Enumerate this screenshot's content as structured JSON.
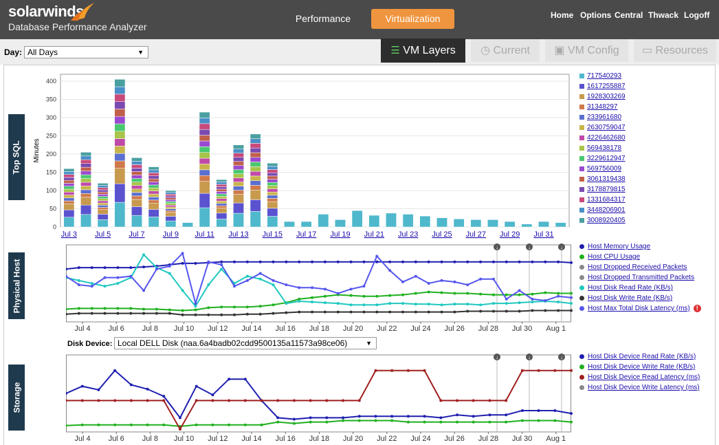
{
  "header": {
    "brand": "solarwinds",
    "product": "Database Performance Analyzer",
    "nav": [
      "Performance",
      "Virtualization"
    ],
    "links": [
      "Home",
      "Options",
      "Central",
      "Thwack",
      "Logoff"
    ]
  },
  "day": {
    "label": "Day:",
    "value": "All Days"
  },
  "tabs": [
    "VM Layers",
    "Current",
    "VM Config",
    "Resources"
  ],
  "sections": {
    "top_sql": "Top SQL",
    "physical_host": "Physical Host",
    "storage": "Storage"
  },
  "disk_device": {
    "label": "Disk Device:",
    "value": "Local DELL Disk (naa.6a4badb02cdd9500135a11573a98ce06)"
  },
  "chart_data": [
    {
      "type": "bar",
      "ylabel": "Minutes",
      "ylim": [
        0,
        400
      ],
      "yticks": [
        0,
        50,
        100,
        150,
        200,
        250,
        300,
        350,
        400
      ],
      "x_tick_labels": [
        "Jul 3",
        "Jul 5",
        "Jul 7",
        "Jul 9",
        "Jul 11",
        "Jul 13",
        "Jul 15",
        "Jul 17",
        "Jul 19",
        "Jul 21",
        "Jul 23",
        "Jul 25",
        "Jul 27",
        "Jul 29",
        "Jul 31"
      ],
      "totals": [
        160,
        205,
        120,
        405,
        190,
        165,
        100,
        12,
        315,
        130,
        225,
        255,
        175,
        15,
        15,
        35,
        20,
        45,
        32,
        38,
        35,
        30,
        25,
        22,
        20,
        20,
        15,
        8,
        15,
        12
      ],
      "legend": [
        "717540293",
        "1617255887",
        "1928303269",
        "31348297",
        "233961680",
        "2630759047",
        "4226462680",
        "569438178",
        "3229612947",
        "569756009",
        "3061319438",
        "3178879815",
        "1331684317",
        "3448206901",
        "3008920405"
      ],
      "colors": [
        "#4fb8cc",
        "#5a52cf",
        "#c89a4e",
        "#cf7a4a",
        "#5a6fd0",
        "#c8b44a",
        "#c04aa8",
        "#a8c44a",
        "#4ac870",
        "#9a4ad0",
        "#c0604a",
        "#7a4ab0",
        "#c84a7a",
        "#4a90c8",
        "#4aa0a0"
      ]
    },
    {
      "type": "line",
      "x_tick_labels": [
        "Jul 4",
        "Jul 6",
        "Jul 8",
        "Jul 10",
        "Jul 12",
        "Jul 14",
        "Jul 16",
        "Jul 18",
        "Jul 20",
        "Jul 22",
        "Jul 24",
        "Jul 26",
        "Jul 28",
        "Jul 30",
        "Aug 1"
      ],
      "series": [
        {
          "name": "Host Memory Usage",
          "color": "#1f1fb0",
          "values": [
            70,
            72,
            72,
            72,
            72,
            72,
            73,
            74,
            76,
            78,
            78,
            79,
            80,
            80,
            80,
            80,
            80,
            80,
            80,
            80,
            80,
            80,
            80,
            80,
            80,
            80,
            80,
            80,
            80,
            80,
            80,
            80,
            80,
            80,
            80,
            80,
            80,
            80,
            80,
            79
          ]
        },
        {
          "name": "Host CPU Usage",
          "color": "#1fb01f",
          "values": [
            14,
            15,
            15,
            15,
            15,
            15,
            14,
            14,
            13,
            12,
            13,
            16,
            17,
            17,
            17,
            18,
            20,
            23,
            28,
            30,
            32,
            34,
            33,
            32,
            32,
            33,
            34,
            36,
            38,
            37,
            36,
            36,
            35,
            34,
            34,
            34,
            35,
            37,
            36,
            36
          ]
        },
        {
          "name": "Host Dropped Received Packets",
          "color": "#888888",
          "values": []
        },
        {
          "name": "Host Dropped Transmitted Packets",
          "color": "#888888",
          "values": []
        },
        {
          "name": "Host Disk Read Rate (KB/s)",
          "color": "#1fc8c0",
          "values": [
            58,
            54,
            50,
            46,
            50,
            58,
            90,
            72,
            64,
            40,
            18,
            48,
            70,
            50,
            60,
            56,
            48,
            22,
            25,
            24,
            23,
            22,
            20,
            20,
            20,
            22,
            22,
            21,
            21,
            20,
            21,
            21,
            20,
            22,
            22,
            23,
            24,
            25,
            24,
            22
          ]
        },
        {
          "name": "Host Disk Write Rate (KB/s)",
          "color": "#333333",
          "values": [
            7,
            8,
            8,
            8,
            8,
            8,
            8,
            8,
            8,
            6,
            6,
            6,
            6,
            6,
            7,
            7,
            8,
            9,
            10,
            10,
            10,
            10,
            10,
            10,
            10,
            10,
            10,
            10,
            10,
            10,
            10,
            11,
            11,
            11,
            11,
            11,
            12,
            12,
            12,
            12
          ]
        },
        {
          "name": "Host Max Total Disk Latency (ms)",
          "color": "#5555ee",
          "values": [
            60,
            48,
            46,
            58,
            58,
            60,
            40,
            70,
            74,
            92,
            22,
            80,
            76,
            46,
            54,
            64,
            54,
            48,
            44,
            44,
            42,
            36,
            42,
            46,
            88,
            68,
            52,
            60,
            50,
            54,
            52,
            48,
            56,
            56,
            28,
            40,
            28,
            26,
            32,
            30
          ]
        }
      ]
    },
    {
      "type": "line",
      "x_tick_labels": [
        "Jul 4",
        "Jul 6",
        "Jul 8",
        "Jul 10",
        "Jul 12",
        "Jul 14",
        "Jul 16",
        "Jul 18",
        "Jul 20",
        "Jul 22",
        "Jul 24",
        "Jul 26",
        "Jul 28",
        "Jul 30",
        "Aug 1"
      ],
      "series": [
        {
          "name": "Host Disk Device Read Rate (KB/s)",
          "color": "#1f1fb0",
          "values": [
            50,
            60,
            55,
            82,
            62,
            56,
            46,
            16,
            60,
            48,
            70,
            70,
            40,
            16,
            14,
            16,
            16,
            16,
            18,
            18,
            18,
            18,
            18,
            16,
            20,
            18,
            20,
            20,
            26,
            26,
            26,
            22
          ]
        },
        {
          "name": "Host Disk Device Write Rate (KB/s)",
          "color": "#1fb01f",
          "values": [
            5,
            6,
            6,
            6,
            6,
            6,
            6,
            4,
            6,
            6,
            6,
            6,
            6,
            10,
            8,
            10,
            10,
            12,
            12,
            12,
            12,
            10,
            10,
            10,
            10,
            10,
            10,
            10,
            12,
            12,
            12,
            10
          ]
        },
        {
          "name": "Host Disk Device Read Latency (ms)",
          "color": "#a01f1f",
          "values": [
            40,
            40,
            40,
            40,
            40,
            40,
            40,
            0,
            40,
            40,
            40,
            40,
            40,
            40,
            40,
            40,
            40,
            40,
            40,
            82,
            82,
            82,
            82,
            40,
            40,
            40,
            40,
            40,
            82,
            82,
            82,
            82
          ]
        },
        {
          "name": "Host Disk Device Write Latency (ms)",
          "color": "#888888",
          "values": []
        }
      ]
    }
  ]
}
